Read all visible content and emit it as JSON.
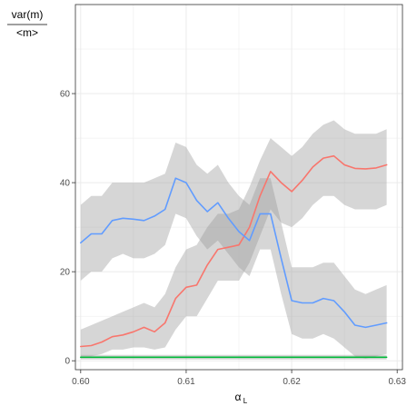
{
  "chart_data": {
    "type": "line",
    "ylabel": {
      "numerator": "var(m)",
      "denominator": "<m>"
    },
    "xlabel": {
      "main": "α",
      "subscript": "L"
    },
    "xlim": [
      0.5995,
      0.6305
    ],
    "ylim": [
      -2,
      80
    ],
    "x_ticks": [
      0.6,
      0.61,
      0.62,
      0.63
    ],
    "x_tick_labels": [
      "0.60",
      "0.61",
      "0.62",
      "0.63"
    ],
    "y_ticks": [
      0,
      20,
      40,
      60
    ],
    "y_tick_labels": [
      "0",
      "20",
      "40",
      "60"
    ],
    "grid": true,
    "legend": "none",
    "colors": {
      "red": "#F8766D",
      "green": "#00BA38",
      "blue": "#619CFF",
      "band": "#999999",
      "grid": "#ebebeb",
      "border": "#333333"
    },
    "series": [
      {
        "color": "#F8766D",
        "points": [
          [
            0.6,
            3.2
          ],
          [
            0.601,
            3.4
          ],
          [
            0.602,
            4.2
          ],
          [
            0.603,
            5.4
          ],
          [
            0.604,
            5.8
          ],
          [
            0.605,
            6.5
          ],
          [
            0.606,
            7.5
          ],
          [
            0.607,
            6.5
          ],
          [
            0.608,
            8.5
          ],
          [
            0.609,
            14
          ],
          [
            0.61,
            16.5
          ],
          [
            0.611,
            17
          ],
          [
            0.612,
            21.5
          ],
          [
            0.613,
            25
          ],
          [
            0.614,
            25.5
          ],
          [
            0.615,
            26
          ],
          [
            0.616,
            30
          ],
          [
            0.617,
            37
          ],
          [
            0.618,
            42.5
          ],
          [
            0.619,
            40
          ],
          [
            0.62,
            38
          ],
          [
            0.621,
            40.5
          ],
          [
            0.622,
            43.5
          ],
          [
            0.623,
            45.5
          ],
          [
            0.624,
            46
          ],
          [
            0.625,
            44
          ],
          [
            0.626,
            43.2
          ],
          [
            0.627,
            43.1
          ],
          [
            0.628,
            43.3
          ],
          [
            0.629,
            44
          ]
        ],
        "band": [
          [
            0.6,
            1,
            7
          ],
          [
            0.601,
            1,
            8
          ],
          [
            0.602,
            1.5,
            9
          ],
          [
            0.603,
            2.5,
            10
          ],
          [
            0.604,
            2.5,
            11
          ],
          [
            0.605,
            3,
            12
          ],
          [
            0.606,
            3,
            13
          ],
          [
            0.607,
            2.5,
            12
          ],
          [
            0.608,
            3,
            15
          ],
          [
            0.609,
            7,
            21
          ],
          [
            0.61,
            10,
            25
          ],
          [
            0.611,
            10,
            26
          ],
          [
            0.612,
            14,
            30
          ],
          [
            0.613,
            18,
            33
          ],
          [
            0.614,
            18,
            33
          ],
          [
            0.615,
            18,
            34
          ],
          [
            0.616,
            22,
            39
          ],
          [
            0.617,
            28,
            45
          ],
          [
            0.618,
            34,
            50
          ],
          [
            0.619,
            31,
            48
          ],
          [
            0.62,
            30,
            46
          ],
          [
            0.621,
            32,
            48
          ],
          [
            0.622,
            35,
            51
          ],
          [
            0.623,
            37,
            53
          ],
          [
            0.624,
            37,
            54
          ],
          [
            0.625,
            35,
            52
          ],
          [
            0.626,
            34,
            51
          ],
          [
            0.627,
            34,
            51
          ],
          [
            0.628,
            34,
            51
          ],
          [
            0.629,
            35,
            52
          ]
        ]
      },
      {
        "color": "#00BA38",
        "points": [
          [
            0.6,
            0.8
          ],
          [
            0.605,
            0.8
          ],
          [
            0.61,
            0.8
          ],
          [
            0.615,
            0.8
          ],
          [
            0.62,
            0.8
          ],
          [
            0.625,
            0.8
          ],
          [
            0.629,
            0.8
          ]
        ],
        "band": [
          [
            0.6,
            0.3,
            1.3
          ],
          [
            0.605,
            0.3,
            1.3
          ],
          [
            0.61,
            0.3,
            1.3
          ],
          [
            0.615,
            0.3,
            1.3
          ],
          [
            0.62,
            0.3,
            1.3
          ],
          [
            0.625,
            0.3,
            1.3
          ],
          [
            0.629,
            0.3,
            1.3
          ]
        ]
      },
      {
        "color": "#619CFF",
        "points": [
          [
            0.6,
            26.5
          ],
          [
            0.601,
            28.5
          ],
          [
            0.602,
            28.5
          ],
          [
            0.603,
            31.5
          ],
          [
            0.604,
            32
          ],
          [
            0.605,
            31.8
          ],
          [
            0.606,
            31.5
          ],
          [
            0.607,
            32.5
          ],
          [
            0.608,
            34
          ],
          [
            0.609,
            41
          ],
          [
            0.61,
            40
          ],
          [
            0.611,
            36
          ],
          [
            0.612,
            33.5
          ],
          [
            0.613,
            35.5
          ],
          [
            0.614,
            32
          ],
          [
            0.615,
            29
          ],
          [
            0.616,
            27
          ],
          [
            0.617,
            33
          ],
          [
            0.618,
            33
          ],
          [
            0.619,
            23
          ],
          [
            0.62,
            13.5
          ],
          [
            0.621,
            13
          ],
          [
            0.622,
            13
          ],
          [
            0.623,
            14
          ],
          [
            0.624,
            13.5
          ],
          [
            0.625,
            11
          ],
          [
            0.626,
            8
          ],
          [
            0.627,
            7.5
          ],
          [
            0.628,
            8
          ],
          [
            0.629,
            8.5
          ]
        ],
        "band": [
          [
            0.6,
            18,
            35
          ],
          [
            0.601,
            20,
            37
          ],
          [
            0.602,
            20,
            37
          ],
          [
            0.603,
            23,
            40
          ],
          [
            0.604,
            24,
            40
          ],
          [
            0.605,
            23,
            40
          ],
          [
            0.606,
            23,
            40
          ],
          [
            0.607,
            24,
            41
          ],
          [
            0.608,
            26,
            42
          ],
          [
            0.609,
            33,
            49
          ],
          [
            0.61,
            32,
            48
          ],
          [
            0.611,
            28,
            44
          ],
          [
            0.612,
            25,
            42
          ],
          [
            0.613,
            27,
            44
          ],
          [
            0.614,
            24,
            40
          ],
          [
            0.615,
            21,
            37
          ],
          [
            0.616,
            19,
            35
          ],
          [
            0.617,
            25,
            41
          ],
          [
            0.618,
            25,
            41
          ],
          [
            0.619,
            15,
            31
          ],
          [
            0.62,
            6,
            21
          ],
          [
            0.621,
            5,
            21
          ],
          [
            0.622,
            5,
            21
          ],
          [
            0.623,
            6,
            22
          ],
          [
            0.624,
            5,
            22
          ],
          [
            0.625,
            3,
            19
          ],
          [
            0.626,
            1,
            16
          ],
          [
            0.627,
            0.5,
            15
          ],
          [
            0.628,
            1,
            16
          ],
          [
            0.629,
            1.5,
            17
          ]
        ]
      }
    ]
  }
}
